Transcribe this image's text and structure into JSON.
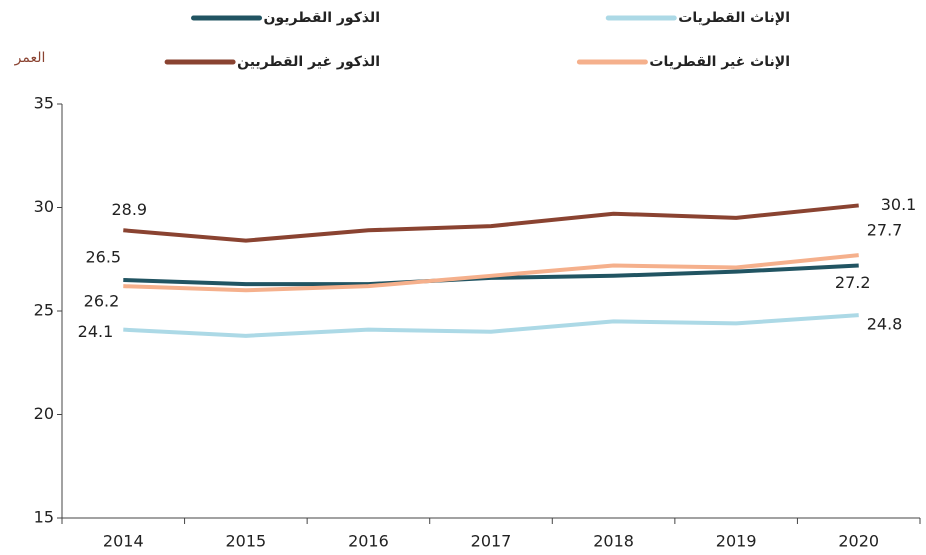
{
  "chart_data": {
    "type": "line",
    "y_label": "العمر",
    "categories": [
      "2014",
      "2015",
      "2016",
      "2017",
      "2018",
      "2019",
      "2020"
    ],
    "series": [
      {
        "name": "الذكور القطريون",
        "color": "#215462",
        "label_color": "#1f3a60",
        "values": [
          26.5,
          26.3,
          26.3,
          26.6,
          26.7,
          26.9,
          27.2
        ]
      },
      {
        "name": "الإناث القطريات",
        "color": "#acd9e6",
        "label_color": "#3f8aa6",
        "values": [
          24.1,
          23.8,
          24.1,
          24.0,
          24.5,
          24.4,
          24.8
        ]
      },
      {
        "name": "الذكور غير القطريين",
        "color": "#8a4331",
        "label_color": "#8a4331",
        "values": [
          28.9,
          28.4,
          28.9,
          29.1,
          29.7,
          29.5,
          30.1
        ]
      },
      {
        "name": "الإناث غير القطريات",
        "color": "#f5b08c",
        "label_color": "#f0a07a",
        "values": [
          26.2,
          26.0,
          26.2,
          26.7,
          27.2,
          27.1,
          27.7
        ]
      }
    ],
    "ylim": [
      15,
      35
    ],
    "yticks": [
      15,
      20,
      25,
      30,
      35
    ],
    "grid": false
  }
}
